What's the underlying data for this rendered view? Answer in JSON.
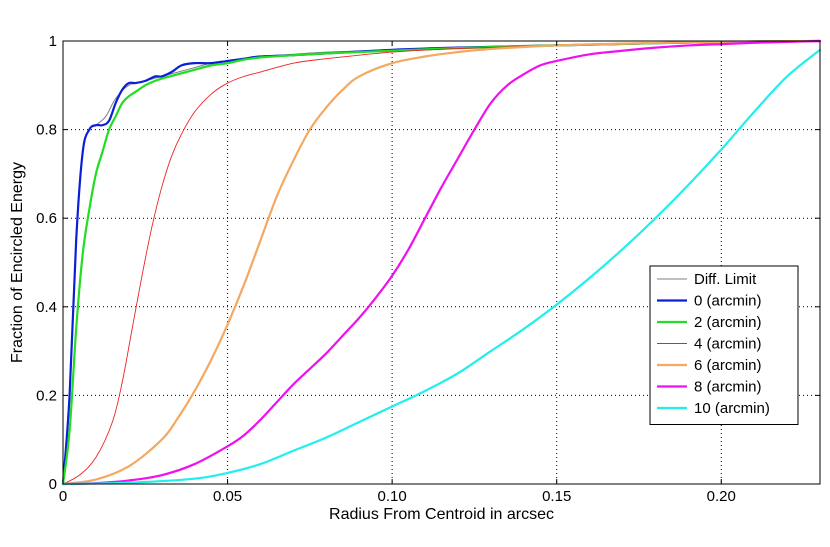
{
  "chart_data": {
    "type": "line",
    "title": "",
    "xlabel": "Radius From Centroid in arcsec",
    "ylabel": "Fraction of Encircled Energy",
    "xlim": [
      0,
      0.23
    ],
    "ylim": [
      0,
      1
    ],
    "xticks": [
      0,
      0.05,
      0.1,
      0.15,
      0.2
    ],
    "xtick_labels": [
      "0",
      "0.05",
      "0.10",
      "0.15",
      "0.20"
    ],
    "yticks": [
      0,
      0.2,
      0.4,
      0.6,
      0.8,
      1
    ],
    "ytick_labels": [
      "0",
      "0.2",
      "0.4",
      "0.6",
      "0.8",
      "1"
    ],
    "grid": true,
    "legend_position": "lower-right",
    "series": [
      {
        "name": "Diff. Limit",
        "color": "#808080",
        "width": 1,
        "x": [
          0,
          0.002,
          0.004,
          0.006,
          0.008,
          0.01,
          0.013,
          0.016,
          0.02,
          0.025,
          0.03,
          0.035,
          0.04,
          0.045,
          0.05,
          0.06,
          0.07,
          0.08,
          0.1,
          0.12,
          0.14,
          0.16,
          0.18,
          0.2,
          0.23
        ],
        "y": [
          0,
          0.2,
          0.55,
          0.75,
          0.8,
          0.81,
          0.83,
          0.87,
          0.9,
          0.91,
          0.92,
          0.93,
          0.94,
          0.95,
          0.955,
          0.965,
          0.97,
          0.975,
          0.98,
          0.985,
          0.99,
          0.993,
          0.996,
          0.998,
          1.0
        ]
      },
      {
        "name": "0 (arcmin)",
        "color": "#0a1fd6",
        "width": 2.2,
        "x": [
          0,
          0.002,
          0.004,
          0.006,
          0.008,
          0.01,
          0.012,
          0.014,
          0.016,
          0.018,
          0.02,
          0.022,
          0.025,
          0.028,
          0.03,
          0.033,
          0.036,
          0.04,
          0.045,
          0.05,
          0.055,
          0.06,
          0.07,
          0.08,
          0.1,
          0.12,
          0.15,
          0.18,
          0.2,
          0.23
        ],
        "y": [
          0,
          0.2,
          0.55,
          0.75,
          0.8,
          0.81,
          0.81,
          0.82,
          0.86,
          0.89,
          0.905,
          0.905,
          0.91,
          0.92,
          0.92,
          0.93,
          0.945,
          0.95,
          0.95,
          0.955,
          0.96,
          0.965,
          0.968,
          0.972,
          0.98,
          0.985,
          0.99,
          0.995,
          0.998,
          1.0
        ]
      },
      {
        "name": "2 (arcmin)",
        "color": "#22dd22",
        "width": 2.2,
        "x": [
          0,
          0.002,
          0.004,
          0.006,
          0.008,
          0.01,
          0.012,
          0.014,
          0.016,
          0.018,
          0.02,
          0.022,
          0.025,
          0.028,
          0.03,
          0.035,
          0.04,
          0.045,
          0.05,
          0.055,
          0.06,
          0.07,
          0.08,
          0.1,
          0.12,
          0.15,
          0.18,
          0.2,
          0.23
        ],
        "y": [
          0,
          0.12,
          0.35,
          0.52,
          0.62,
          0.7,
          0.75,
          0.8,
          0.83,
          0.86,
          0.875,
          0.885,
          0.9,
          0.91,
          0.915,
          0.925,
          0.935,
          0.945,
          0.95,
          0.958,
          0.963,
          0.968,
          0.972,
          0.978,
          0.984,
          0.99,
          0.995,
          0.998,
          1.0
        ]
      },
      {
        "name": "4 (arcmin)",
        "color": "#ee2222",
        "width": 0.9,
        "x": [
          0,
          0.005,
          0.01,
          0.015,
          0.018,
          0.021,
          0.024,
          0.027,
          0.03,
          0.033,
          0.036,
          0.04,
          0.045,
          0.05,
          0.055,
          0.06,
          0.07,
          0.08,
          0.1,
          0.12,
          0.15,
          0.18,
          0.2,
          0.23
        ],
        "y": [
          0,
          0.02,
          0.06,
          0.14,
          0.23,
          0.35,
          0.47,
          0.58,
          0.67,
          0.74,
          0.79,
          0.84,
          0.88,
          0.905,
          0.92,
          0.93,
          0.95,
          0.96,
          0.975,
          0.983,
          0.99,
          0.995,
          0.998,
          1.0
        ]
      },
      {
        "name": "6 (arcmin)",
        "color": "#f4a860",
        "width": 2.2,
        "x": [
          0,
          0.01,
          0.02,
          0.03,
          0.035,
          0.04,
          0.045,
          0.05,
          0.055,
          0.06,
          0.065,
          0.07,
          0.075,
          0.08,
          0.085,
          0.09,
          0.1,
          0.11,
          0.12,
          0.13,
          0.15,
          0.17,
          0.19,
          0.21,
          0.23
        ],
        "y": [
          0,
          0.01,
          0.04,
          0.1,
          0.15,
          0.21,
          0.28,
          0.36,
          0.45,
          0.55,
          0.65,
          0.73,
          0.8,
          0.85,
          0.89,
          0.92,
          0.95,
          0.965,
          0.975,
          0.982,
          0.99,
          0.994,
          0.997,
          0.999,
          1.0
        ]
      },
      {
        "name": "8 (arcmin)",
        "color": "#ee11ee",
        "width": 2.2,
        "x": [
          0,
          0.01,
          0.02,
          0.03,
          0.04,
          0.05,
          0.055,
          0.06,
          0.065,
          0.07,
          0.075,
          0.08,
          0.085,
          0.09,
          0.095,
          0.1,
          0.105,
          0.11,
          0.115,
          0.12,
          0.125,
          0.13,
          0.135,
          0.14,
          0.145,
          0.15,
          0.16,
          0.17,
          0.18,
          0.19,
          0.2,
          0.21,
          0.22,
          0.23
        ],
        "y": [
          0,
          0.002,
          0.008,
          0.02,
          0.045,
          0.085,
          0.11,
          0.145,
          0.185,
          0.225,
          0.26,
          0.295,
          0.335,
          0.375,
          0.42,
          0.47,
          0.53,
          0.6,
          0.67,
          0.735,
          0.8,
          0.86,
          0.9,
          0.925,
          0.945,
          0.955,
          0.97,
          0.978,
          0.985,
          0.99,
          0.993,
          0.996,
          0.998,
          1.0
        ]
      },
      {
        "name": "10 (arcmin)",
        "color": "#22eeee",
        "width": 2.2,
        "x": [
          0,
          0.02,
          0.04,
          0.05,
          0.06,
          0.07,
          0.08,
          0.09,
          0.1,
          0.11,
          0.12,
          0.13,
          0.14,
          0.15,
          0.16,
          0.17,
          0.18,
          0.19,
          0.2,
          0.21,
          0.22,
          0.23
        ],
        "y": [
          0,
          0.003,
          0.012,
          0.025,
          0.045,
          0.075,
          0.105,
          0.14,
          0.175,
          0.21,
          0.25,
          0.3,
          0.35,
          0.405,
          0.465,
          0.53,
          0.6,
          0.675,
          0.755,
          0.84,
          0.92,
          0.98
        ]
      }
    ]
  }
}
